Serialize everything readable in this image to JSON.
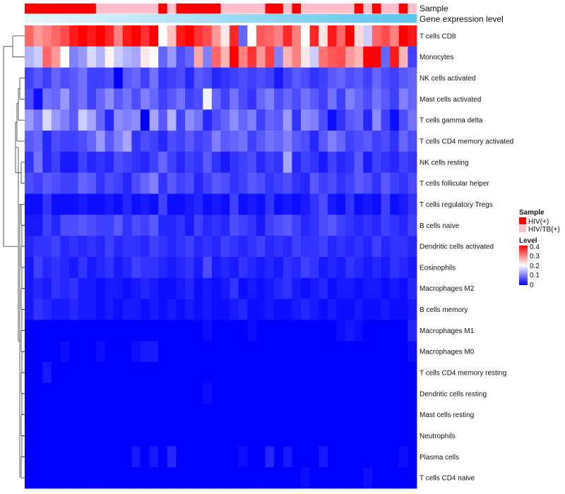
{
  "chart_data": {
    "type": "heatmap",
    "title": "",
    "annotation_tracks": [
      "Sample",
      "Gene expression level"
    ],
    "rows": [
      "T cells CD8",
      "Monocytes",
      "NK cells activated",
      "Mast cells activated",
      "T cells gamma delta",
      "T cells CD4 memory activated",
      "NK cells resting",
      "T cells follicular helper",
      "T cells regulatory  Tregs",
      "B cells naive",
      "Dendritic cells activated",
      "Eosinophils",
      "Macrophages M2",
      "B cells memory",
      "Macrophages M1",
      "Macrophages M0",
      "T cells CD4 memory resting",
      "Dendritic cells resting",
      "Mast cells resting",
      "Neutrophils",
      "Plasma cells",
      "T cells CD4 naive"
    ],
    "columns": 44,
    "sample_groups": [
      "HIV(+)",
      "HIV(+)",
      "HIV(+)",
      "HIV(+)",
      "HIV(+)",
      "HIV(+)",
      "HIV(+)",
      "HIV(+)",
      "HIV/TB(+)",
      "HIV/TB(+)",
      "HIV/TB(+)",
      "HIV/TB(+)",
      "HIV/TB(+)",
      "HIV/TB(+)",
      "HIV/TB(+)",
      "HIV(+)",
      "HIV/TB(+)",
      "HIV(+)",
      "HIV(+)",
      "HIV(+)",
      "HIV(+)",
      "HIV(+)",
      "HIV/TB(+)",
      "HIV/TB(+)",
      "HIV/TB(+)",
      "HIV/TB(+)",
      "HIV/TB(+)",
      "HIV(+)",
      "HIV(+)",
      "HIV/TB(+)",
      "HIV(+)",
      "HIV/TB(+)",
      "HIV/TB(+)",
      "HIV/TB(+)",
      "HIV/TB(+)",
      "HIV/TB(+)",
      "HIV/TB(+)",
      "HIV(+)",
      "HIV/TB(+)",
      "HIV(+)",
      "HIV/TB(+)",
      "HIV/TB(+)",
      "HIV(+)",
      "HIV/TB(+)"
    ],
    "values": [
      [
        0.32,
        0.28,
        0.3,
        0.32,
        0.34,
        0.38,
        0.4,
        0.38,
        0.4,
        0.37,
        0.3,
        0.38,
        0.4,
        0.36,
        0.4,
        0.2,
        0.25,
        0.38,
        0.4,
        0.36,
        0.34,
        0.28,
        0.22,
        0.37,
        0.08,
        0.2,
        0.33,
        0.32,
        0.3,
        0.37,
        0.3,
        0.2,
        0.37,
        0.22,
        0.38,
        0.32,
        0.4,
        0.23,
        0.16,
        0.32,
        0.34,
        0.3,
        0.4,
        0.38
      ],
      [
        0.14,
        0.16,
        0.32,
        0.28,
        0.2,
        0.1,
        0.12,
        0.17,
        0.14,
        0.21,
        0.16,
        0.14,
        0.13,
        0.22,
        0.2,
        0.08,
        0.12,
        0.06,
        0.08,
        0.27,
        0.1,
        0.32,
        0.26,
        0.4,
        0.3,
        0.36,
        0.28,
        0.35,
        0.1,
        0.26,
        0.3,
        0.22,
        0.16,
        0.31,
        0.33,
        0.34,
        0.28,
        0.26,
        0.4,
        0.42,
        0.08,
        0.38,
        0.26,
        0.05
      ],
      [
        0.05,
        0.07,
        0.05,
        0.08,
        0.06,
        0.07,
        0.09,
        0.05,
        0.05,
        0.06,
        0.0,
        0.07,
        0.08,
        0.05,
        0.09,
        0.04,
        0.05,
        0.06,
        0.03,
        0.07,
        0.06,
        0.03,
        0.04,
        0.05,
        0.06,
        0.05,
        0.06,
        0.05,
        0.02,
        0.05,
        0.07,
        0.06,
        0.04,
        0.05,
        0.07,
        0.08,
        0.06,
        0.07,
        0.05,
        0.08,
        0.06,
        0.05,
        0.07,
        0.08
      ],
      [
        0.06,
        0.01,
        0.09,
        0.08,
        0.12,
        0.07,
        0.09,
        0.05,
        0.08,
        0.11,
        0.07,
        0.09,
        0.06,
        0.1,
        0.08,
        0.05,
        0.07,
        0.09,
        0.05,
        0.06,
        0.19,
        0.08,
        0.05,
        0.09,
        0.06,
        0.04,
        0.08,
        0.1,
        0.06,
        0.08,
        0.06,
        0.09,
        0.07,
        0.05,
        0.09,
        0.05,
        0.1,
        0.08,
        0.06,
        0.09,
        0.07,
        0.05,
        0.1,
        0.08
      ],
      [
        0.12,
        0.09,
        0.17,
        0.12,
        0.1,
        0.07,
        0.16,
        0.13,
        0.08,
        0.03,
        0.11,
        0.1,
        0.11,
        0.0,
        0.13,
        0.07,
        0.14,
        0.05,
        0.11,
        0.09,
        0.03,
        0.06,
        0.08,
        0.11,
        0.08,
        0.1,
        0.05,
        0.08,
        0.07,
        0.12,
        0.04,
        0.11,
        0.1,
        0.06,
        0.01,
        0.04,
        0.07,
        0.08,
        0.03,
        0.11,
        0.05,
        0.01,
        0.06,
        0.09
      ],
      [
        0.07,
        0.08,
        0.03,
        0.06,
        0.05,
        0.05,
        0.06,
        0.08,
        0.12,
        0.07,
        0.1,
        0.13,
        0.04,
        0.06,
        0.05,
        0.03,
        0.06,
        0.05,
        0.07,
        0.05,
        0.06,
        0.1,
        0.07,
        0.08,
        0.09,
        0.05,
        0.07,
        0.09,
        0.08,
        0.1,
        0.07,
        0.06,
        0.03,
        0.07,
        0.1,
        0.08,
        0.05,
        0.06,
        0.07,
        0.05,
        0.06,
        0.04,
        0.08,
        0.06
      ],
      [
        0.04,
        0.09,
        0.03,
        0.05,
        0.02,
        0.02,
        0.05,
        0.03,
        0.04,
        0.03,
        0.06,
        0.05,
        0.04,
        0.03,
        0.05,
        0.08,
        0.05,
        0.03,
        0.05,
        0.04,
        0.07,
        0.04,
        0.02,
        0.04,
        0.05,
        0.06,
        0.03,
        0.05,
        0.04,
        0.13,
        0.03,
        0.05,
        0.04,
        0.02,
        0.05,
        0.03,
        0.04,
        0.07,
        0.02,
        0.05,
        0.04,
        0.03,
        0.05,
        0.04
      ],
      [
        0.06,
        0.05,
        0.07,
        0.06,
        0.05,
        0.05,
        0.08,
        0.07,
        0.04,
        0.06,
        0.05,
        0.03,
        0.06,
        0.08,
        0.1,
        0.04,
        0.07,
        0.05,
        0.06,
        0.03,
        0.05,
        0.07,
        0.06,
        0.04,
        0.05,
        0.07,
        0.06,
        0.04,
        0.05,
        0.06,
        0.04,
        0.03,
        0.07,
        0.05,
        0.06,
        0.04,
        0.05,
        0.07,
        0.06,
        0.04,
        0.07,
        0.05,
        0.04,
        0.06
      ],
      [
        0.01,
        0.01,
        0.04,
        0.01,
        0.01,
        0.01,
        0.02,
        0.01,
        0.01,
        0.02,
        0.01,
        0.03,
        0.01,
        0.02,
        0.01,
        0.05,
        0.01,
        0.01,
        0.02,
        0.03,
        0.01,
        0.02,
        0.01,
        0.05,
        0.01,
        0.02,
        0.01,
        0.04,
        0.01,
        0.02,
        0.01,
        0.02,
        0.04,
        0.06,
        0.02,
        0.01,
        0.04,
        0.01,
        0.02,
        0.01,
        0.05,
        0.01,
        0.02,
        0.04
      ],
      [
        0.02,
        0.02,
        0.05,
        0.03,
        0.06,
        0.06,
        0.07,
        0.06,
        0.05,
        0.05,
        0.07,
        0.04,
        0.06,
        0.05,
        0.07,
        0.03,
        0.03,
        0.04,
        0.02,
        0.05,
        0.03,
        0.04,
        0.03,
        0.06,
        0.05,
        0.04,
        0.02,
        0.05,
        0.06,
        0.07,
        0.05,
        0.03,
        0.04,
        0.06,
        0.07,
        0.05,
        0.04,
        0.03,
        0.04,
        0.03,
        0.05,
        0.04,
        0.03,
        0.05
      ],
      [
        0.03,
        0.04,
        0.04,
        0.05,
        0.03,
        0.04,
        0.03,
        0.04,
        0.03,
        0.05,
        0.03,
        0.04,
        0.04,
        0.03,
        0.05,
        0.04,
        0.03,
        0.04,
        0.05,
        0.03,
        0.04,
        0.03,
        0.05,
        0.04,
        0.03,
        0.04,
        0.05,
        0.03,
        0.04,
        0.03,
        0.05,
        0.04,
        0.04,
        0.05,
        0.03,
        0.04,
        0.03,
        0.04,
        0.03,
        0.05,
        0.03,
        0.04,
        0.04,
        0.03
      ],
      [
        0.02,
        0.05,
        0.03,
        0.04,
        0.03,
        0.02,
        0.04,
        0.02,
        0.03,
        0.04,
        0.02,
        0.03,
        0.05,
        0.04,
        0.04,
        0.03,
        0.02,
        0.03,
        0.04,
        0.02,
        0.06,
        0.02,
        0.03,
        0.02,
        0.04,
        0.03,
        0.02,
        0.03,
        0.02,
        0.04,
        0.03,
        0.05,
        0.04,
        0.02,
        0.03,
        0.02,
        0.04,
        0.03,
        0.02,
        0.03,
        0.02,
        0.04,
        0.03,
        0.02
      ],
      [
        0.02,
        0.03,
        0.02,
        0.04,
        0.03,
        0.04,
        0.02,
        0.02,
        0.01,
        0.02,
        0.02,
        0.01,
        0.02,
        0.03,
        0.02,
        0.01,
        0.01,
        0.02,
        0.03,
        0.01,
        0.02,
        0.01,
        0.02,
        0.04,
        0.01,
        0.02,
        0.01,
        0.02,
        0.03,
        0.04,
        0.02,
        0.01,
        0.02,
        0.03,
        0.01,
        0.02,
        0.02,
        0.01,
        0.02,
        0.02,
        0.01,
        0.02,
        0.01,
        0.03
      ],
      [
        0.02,
        0.04,
        0.03,
        0.02,
        0.02,
        0.03,
        0.02,
        0.02,
        0.01,
        0.02,
        0.01,
        0.02,
        0.02,
        0.01,
        0.02,
        0.01,
        0.02,
        0.01,
        0.02,
        0.01,
        0.02,
        0.01,
        0.01,
        0.02,
        0.03,
        0.01,
        0.01,
        0.02,
        0.01,
        0.01,
        0.02,
        0.03,
        0.02,
        0.01,
        0.02,
        0.01,
        0.01,
        0.02,
        0.01,
        0.01,
        0.02,
        0.01,
        0.01,
        0.02
      ],
      [
        0.0,
        0.0,
        0.0,
        0.0,
        0.0,
        0.0,
        0.0,
        0.0,
        0.0,
        0.0,
        0.0,
        0.0,
        0.0,
        0.0,
        0.0,
        0.0,
        0.0,
        0.0,
        0.0,
        0.0,
        0.01,
        0.0,
        0.0,
        0.0,
        0.0,
        0.01,
        0.0,
        0.0,
        0.0,
        0.0,
        0.0,
        0.0,
        0.0,
        0.0,
        0.0,
        0.01,
        0.02,
        0.01,
        0.0,
        0.0,
        0.0,
        0.0,
        0.0,
        0.03
      ],
      [
        0.0,
        0.0,
        0.0,
        0.0,
        0.01,
        0.0,
        0.0,
        0.0,
        0.01,
        0.0,
        0.0,
        0.0,
        0.01,
        0.02,
        0.02,
        0.0,
        0.0,
        0.0,
        0.0,
        0.0,
        0.0,
        0.0,
        0.0,
        0.0,
        0.0,
        0.0,
        0.0,
        0.0,
        0.0,
        0.0,
        0.0,
        0.0,
        0.0,
        0.0,
        0.0,
        0.0,
        0.0,
        0.0,
        0.0,
        0.0,
        0.0,
        0.0,
        0.0,
        0.01
      ],
      [
        0.0,
        0.0,
        0.02,
        0.0,
        0.0,
        0.0,
        0.0,
        0.0,
        0.0,
        0.0,
        0.0,
        0.0,
        0.0,
        0.0,
        0.0,
        0.0,
        0.0,
        0.0,
        0.0,
        0.0,
        0.0,
        0.0,
        0.0,
        0.0,
        0.0,
        0.0,
        0.0,
        0.0,
        0.0,
        0.0,
        0.0,
        0.0,
        0.0,
        0.0,
        0.0,
        0.0,
        0.0,
        0.0,
        0.0,
        0.0,
        0.0,
        0.0,
        0.0,
        0.0
      ],
      [
        0.0,
        0.0,
        0.0,
        0.0,
        0.0,
        0.0,
        0.0,
        0.0,
        0.0,
        0.0,
        0.0,
        0.0,
        0.0,
        0.0,
        0.0,
        0.0,
        0.0,
        0.0,
        0.0,
        0.0,
        0.01,
        0.0,
        0.0,
        0.0,
        0.0,
        0.0,
        0.0,
        0.0,
        0.0,
        0.0,
        0.0,
        0.0,
        0.0,
        0.0,
        0.0,
        0.0,
        0.0,
        0.0,
        0.0,
        0.0,
        0.0,
        0.0,
        0.0,
        0.0
      ],
      [
        0.0,
        0.0,
        0.0,
        0.0,
        0.0,
        0.0,
        0.0,
        0.0,
        0.0,
        0.0,
        0.0,
        0.0,
        0.0,
        0.0,
        0.0,
        0.0,
        0.0,
        0.0,
        0.0,
        0.0,
        0.0,
        0.0,
        0.0,
        0.0,
        0.0,
        0.0,
        0.0,
        0.0,
        0.0,
        0.0,
        0.0,
        0.0,
        0.0,
        0.0,
        0.0,
        0.0,
        0.0,
        0.0,
        0.0,
        0.0,
        0.0,
        0.0,
        0.0,
        0.0
      ],
      [
        0.0,
        0.0,
        0.0,
        0.0,
        0.0,
        0.0,
        0.0,
        0.0,
        0.0,
        0.0,
        0.0,
        0.0,
        0.0,
        0.0,
        0.0,
        0.0,
        0.0,
        0.0,
        0.0,
        0.0,
        0.0,
        0.0,
        0.0,
        0.0,
        0.0,
        0.0,
        0.0,
        0.0,
        0.0,
        0.0,
        0.0,
        0.0,
        0.0,
        0.0,
        0.0,
        0.0,
        0.0,
        0.0,
        0.0,
        0.0,
        0.0,
        0.0,
        0.0,
        0.0
      ],
      [
        0.0,
        0.0,
        0.0,
        0.0,
        0.0,
        0.0,
        0.0,
        0.0,
        0.0,
        0.0,
        0.0,
        0.0,
        0.02,
        0.0,
        0.02,
        0.0,
        0.03,
        0.0,
        0.0,
        0.0,
        0.0,
        0.0,
        0.0,
        0.0,
        0.01,
        0.0,
        0.0,
        0.03,
        0.0,
        0.02,
        0.0,
        0.0,
        0.0,
        0.02,
        0.0,
        0.0,
        0.0,
        0.0,
        0.0,
        0.0,
        0.0,
        0.0,
        0.01,
        0.0
      ],
      [
        0.0,
        0.0,
        0.0,
        0.0,
        0.0,
        0.0,
        0.0,
        0.0,
        0.0,
        0.0,
        0.0,
        0.0,
        0.0,
        0.0,
        0.0,
        0.0,
        0.0,
        0.0,
        0.0,
        0.0,
        0.0,
        0.0,
        0.0,
        0.0,
        0.0,
        0.0,
        0.0,
        0.0,
        0.0,
        0.0,
        0.0,
        0.01,
        0.0,
        0.0,
        0.0,
        0.0,
        0.0,
        0.0,
        0.01,
        0.0,
        0.0,
        0.0,
        0.0,
        0.0
      ]
    ],
    "color_scale": {
      "min": 0,
      "max": 0.4,
      "low_color": "#0000ff",
      "mid_color": "#ffffff",
      "high_color": "#ff0000"
    }
  },
  "legend": {
    "sample_title": "Sample",
    "sample_items": [
      {
        "label": "HIV(+)",
        "color": "#ff0000"
      },
      {
        "label": "HIV/TB(+)",
        "color": "#ffc0cb"
      }
    ],
    "level_title": "Level",
    "level_ticks": [
      "0.4",
      "0.3",
      "0.2",
      "0.1",
      "0"
    ]
  },
  "colors": {
    "expression_low": "#e8f6fb",
    "expression_high": "#5bc4ec"
  }
}
